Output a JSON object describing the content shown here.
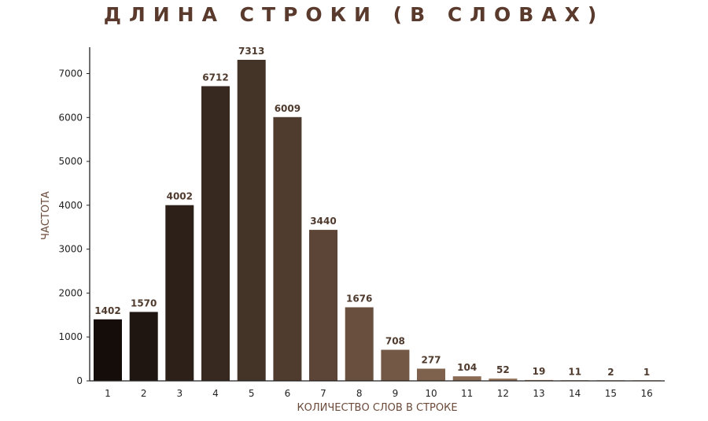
{
  "chart_data": {
    "type": "bar",
    "title": "ДЛИНА СТРОКИ (В СЛОВАХ)",
    "xlabel": "КОЛИЧЕСТВО СЛОВ В СТРОКЕ",
    "ylabel": "ЧАСТОТА",
    "categories": [
      "1",
      "2",
      "3",
      "4",
      "5",
      "6",
      "7",
      "8",
      "9",
      "10",
      "11",
      "12",
      "13",
      "14",
      "15",
      "16"
    ],
    "values": [
      1402,
      1570,
      4002,
      6712,
      7313,
      6009,
      3440,
      1676,
      708,
      277,
      104,
      52,
      19,
      11,
      2,
      1
    ],
    "ylim": [
      0,
      7600
    ],
    "yticks": [
      0,
      1000,
      2000,
      3000,
      4000,
      5000,
      6000,
      7000
    ],
    "grid": false,
    "legend": "none",
    "colors": {
      "bar_gradient_start": "#140d09",
      "bar_gradient_end": "#c79a7a",
      "value_label": "#4f3a2e",
      "title": "#5a3a2d",
      "axis": "#222222"
    }
  }
}
